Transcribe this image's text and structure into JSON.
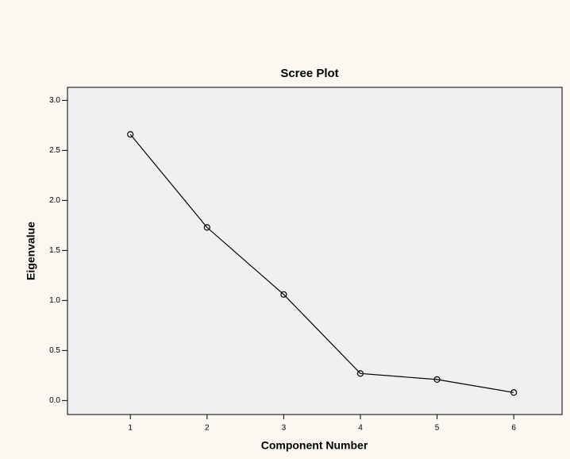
{
  "chart_data": {
    "type": "line",
    "title": "Scree Plot",
    "x_label": "Component Number",
    "y_label": "Eigenvalue",
    "x": [
      1,
      2,
      3,
      4,
      5,
      6
    ],
    "values": [
      2.66,
      1.73,
      1.06,
      0.27,
      0.21,
      0.08
    ],
    "color": "#000000",
    "xlim": [
      0.18,
      6.63
    ],
    "xticks": [
      1,
      2,
      3,
      4,
      5,
      6
    ],
    "ylim": [
      -0.14,
      3.13
    ],
    "yticks": [
      {
        "value": 0,
        "label": "0.0"
      },
      {
        "value": 0.5,
        "label": "0.5"
      },
      {
        "value": 1,
        "label": "1.0"
      },
      {
        "value": 1.5,
        "label": "1.5"
      },
      {
        "value": 2,
        "label": "2.0"
      },
      {
        "value": 2.5,
        "label": "2.5"
      },
      {
        "value": 3,
        "label": "3.0"
      }
    ],
    "grid": false
  }
}
